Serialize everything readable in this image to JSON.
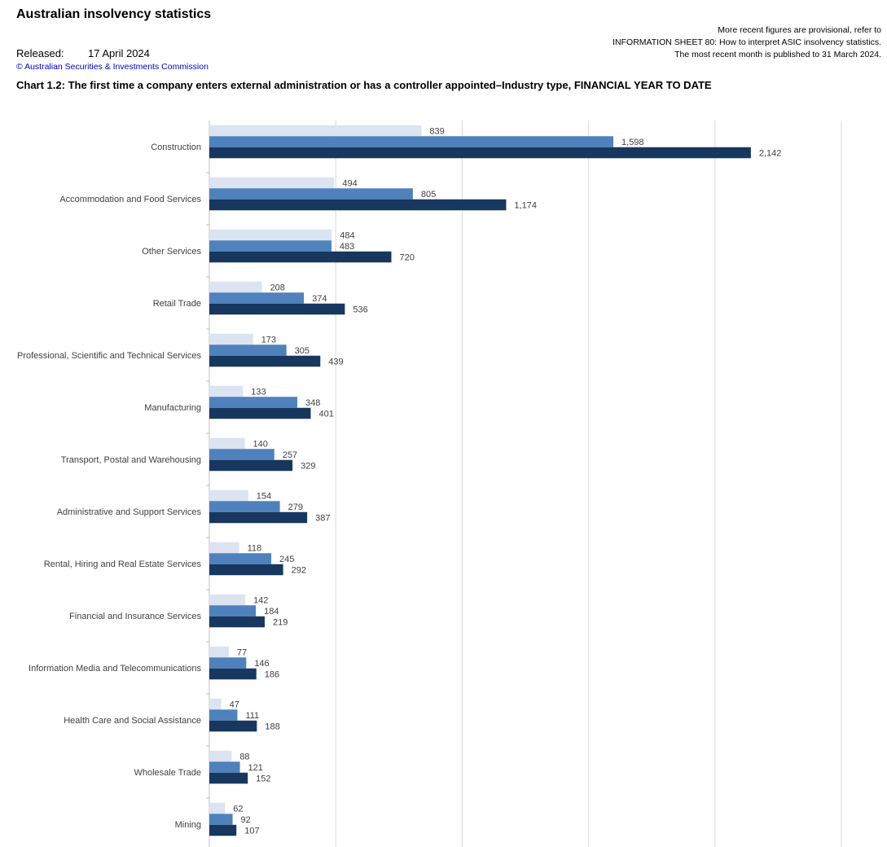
{
  "header": {
    "title": "Australian insolvency statistics",
    "note_lines": [
      "More recent figures are provisional, refer to",
      "INFORMATION SHEET 80: How to interpret ASIC insolvency statistics.",
      "The most recent month is published to 31 March 2024."
    ],
    "released_label": "Released:",
    "released_date": "17 April 2024",
    "copyright": "© Australian Securities & Investments Commission"
  },
  "chart_data": {
    "type": "bar",
    "orientation": "horizontal",
    "title": "Chart 1.2:  The first time a company enters external administration or has a controller appointed–Industry type, FINANCIAL YEAR TO DATE",
    "xlim": [
      0,
      2500
    ],
    "grid": true,
    "categories": [
      "Construction",
      "Accommodation and Food Services",
      "Other Services",
      "Retail Trade",
      "Professional, Scientific and Technical Services",
      "Manufacturing",
      "Transport, Postal and Warehousing",
      "Administrative and Support Services",
      "Rental, Hiring and Real Estate Services",
      "Financial and Insurance Services",
      "Information Media and Telecommunications",
      "Health Care and Social Assistance",
      "Wholesale Trade",
      "Mining"
    ],
    "series": [
      {
        "color": "#dce3f1",
        "values": [
          839,
          494,
          484,
          208,
          173,
          133,
          140,
          154,
          118,
          142,
          77,
          47,
          88,
          62
        ]
      },
      {
        "color": "#4f81bd",
        "values": [
          1598,
          805,
          483,
          374,
          305,
          348,
          257,
          279,
          245,
          184,
          146,
          111,
          121,
          92
        ]
      },
      {
        "color": "#17375e",
        "values": [
          2142,
          1174,
          720,
          536,
          439,
          401,
          329,
          387,
          292,
          219,
          186,
          188,
          152,
          107
        ]
      }
    ]
  }
}
